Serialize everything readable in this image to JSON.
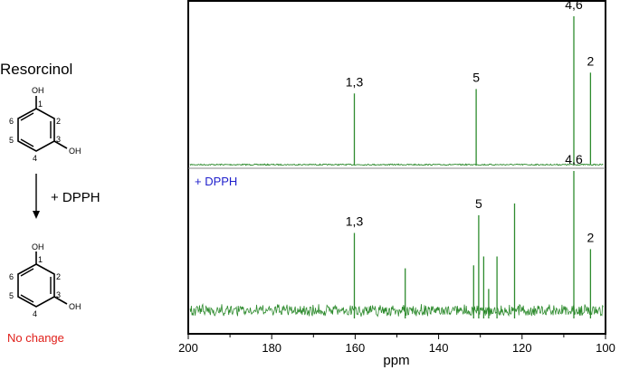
{
  "scheme": {
    "compound_name": "Resorcinol",
    "reagent": "+ DPPH",
    "result": "No change",
    "result_color": "#e0201b",
    "substituent_label": "OH",
    "top_numbers": [
      "1",
      "2",
      "3",
      "4",
      "5",
      "6"
    ],
    "bottom_numbers": [
      "1",
      "2",
      "3",
      "4",
      "5",
      "6"
    ]
  },
  "chart_data": {
    "type": "line",
    "xlabel": "ppm",
    "xlim": [
      200,
      100
    ],
    "x_reversed": true,
    "xticks": [
      200,
      180,
      160,
      140,
      120,
      100
    ],
    "line_color": "#2e8b2e",
    "panels": [
      {
        "name": "",
        "noise_level": 0.012,
        "peaks": [
          {
            "x": 160.2,
            "height": 0.48,
            "label": "1,3"
          },
          {
            "x": 131.0,
            "height": 0.51,
            "label": "5"
          },
          {
            "x": 107.6,
            "height": 1.0,
            "label": "4,6"
          },
          {
            "x": 103.6,
            "height": 0.62,
            "label": "2"
          }
        ]
      },
      {
        "name": "+ DPPH",
        "name_color": "#1f1fcc",
        "noise_level": 0.1,
        "peaks": [
          {
            "x": 160.2,
            "height": 0.58,
            "label": "1,3"
          },
          {
            "x": 148.0,
            "height": 0.34,
            "label": ""
          },
          {
            "x": 131.6,
            "height": 0.36,
            "label": ""
          },
          {
            "x": 130.4,
            "height": 0.7,
            "label": "5"
          },
          {
            "x": 129.2,
            "height": 0.42,
            "label": ""
          },
          {
            "x": 128.0,
            "height": 0.2,
            "label": ""
          },
          {
            "x": 126.0,
            "height": 0.42,
            "label": ""
          },
          {
            "x": 121.8,
            "height": 0.78,
            "label": ""
          },
          {
            "x": 107.6,
            "height": 1.0,
            "label": "4,6"
          },
          {
            "x": 103.6,
            "height": 0.47,
            "label": "2"
          }
        ]
      }
    ]
  }
}
